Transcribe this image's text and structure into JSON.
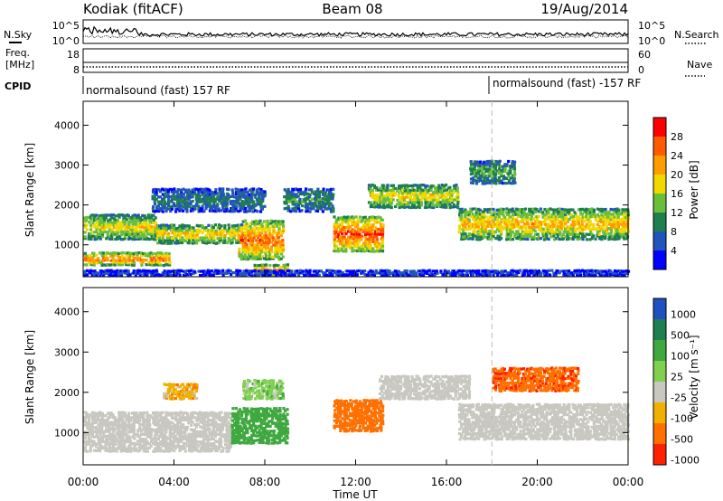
{
  "header": {
    "station": "Kodiak (fitACF)",
    "beam": "Beam 08",
    "date": "19/Aug/2014"
  },
  "summary_panels": {
    "nsky_label": "N.Sky",
    "nsearch_label": "N.Search",
    "freq_label_1": "Freq.",
    "freq_label_2": "[MHz]",
    "nave_label": "Nave",
    "cpid_label": "CPID",
    "noise_ticks": [
      "10^5",
      "10^0"
    ],
    "freq_ticks": [
      "18",
      "8"
    ],
    "nave_ticks": [
      "60",
      "0"
    ],
    "cpid_segments": [
      {
        "label": "normalsound (fast) 157 RF",
        "start_hour": 0.0
      },
      {
        "label": "normalsound (fast) -157 RF",
        "start_hour": 18.0
      }
    ]
  },
  "chart_data": [
    {
      "type": "heatmap",
      "name": "power",
      "ylabel": "Slant Range [km]",
      "ylim": [
        200,
        4600
      ],
      "yticks": [
        1000,
        2000,
        3000,
        4000
      ],
      "colorbar_label": "Power [dB]",
      "colorbar_ticks": [
        4,
        8,
        12,
        16,
        20,
        24,
        28
      ],
      "colorbar_colors": [
        "#0000ff",
        "#2255bb",
        "#1f7f4f",
        "#6abf3a",
        "#f0d800",
        "#ff9d00",
        "#ff5a00",
        "#ff0000"
      ],
      "bands": [
        {
          "t": [
            0.0,
            3.8
          ],
          "r": [
            450,
            800
          ],
          "dB": 28
        },
        {
          "t": [
            0.0,
            3.2
          ],
          "r": [
            1100,
            1750
          ],
          "dB": 20
        },
        {
          "t": [
            3.2,
            7.0
          ],
          "r": [
            1000,
            1500
          ],
          "dB": 22
        },
        {
          "t": [
            6.8,
            8.8
          ],
          "r": [
            600,
            1600
          ],
          "dB": 27
        },
        {
          "t": [
            7.5,
            9.0
          ],
          "r": [
            200,
            500
          ],
          "dB": 26
        },
        {
          "t": [
            8.8,
            11.0
          ],
          "r": [
            1800,
            2400
          ],
          "dB": 12
        },
        {
          "t": [
            3.0,
            8.0
          ],
          "r": [
            1800,
            2400
          ],
          "dB": 10
        },
        {
          "t": [
            11.0,
            13.2
          ],
          "r": [
            800,
            1700
          ],
          "dB": 29
        },
        {
          "t": [
            12.5,
            16.5
          ],
          "r": [
            1900,
            2500
          ],
          "dB": 20
        },
        {
          "t": [
            16.5,
            24.0
          ],
          "r": [
            1100,
            1900
          ],
          "dB": 22
        },
        {
          "t": [
            17.0,
            19.0
          ],
          "r": [
            2500,
            3100
          ],
          "dB": 14
        },
        {
          "t": [
            0.0,
            24.0
          ],
          "r": [
            200,
            350
          ],
          "dB": 6
        }
      ]
    },
    {
      "type": "heatmap",
      "name": "velocity",
      "ylabel": "Slant Range [km]",
      "ylim": [
        200,
        4600
      ],
      "yticks": [
        1000,
        2000,
        3000,
        4000
      ],
      "colorbar_label": "Velocity [m s⁻¹]",
      "colorbar_ticks": [
        1000,
        500,
        100,
        25,
        -25,
        -100,
        -500,
        -1000
      ],
      "colorbar_colors": [
        "#2050c0",
        "#1f7f4f",
        "#3fa83f",
        "#7fd04f",
        "#c8c8c0",
        "#f0b000",
        "#ff7000",
        "#ff2000"
      ],
      "bands": [
        {
          "t": [
            0.0,
            6.5
          ],
          "r": [
            500,
            1500
          ],
          "v": 0
        },
        {
          "t": [
            6.5,
            9.0
          ],
          "r": [
            700,
            1600
          ],
          "v": 300
        },
        {
          "t": [
            11.0,
            13.2
          ],
          "r": [
            1000,
            1800
          ],
          "v": -300
        },
        {
          "t": [
            13.0,
            17.0
          ],
          "r": [
            1800,
            2400
          ],
          "v": 0
        },
        {
          "t": [
            16.5,
            24.0
          ],
          "r": [
            800,
            1700
          ],
          "v": 0
        },
        {
          "t": [
            18.0,
            21.8
          ],
          "r": [
            2000,
            2600
          ],
          "v": -400
        },
        {
          "t": [
            3.5,
            5.0
          ],
          "r": [
            1800,
            2200
          ],
          "v": -60
        },
        {
          "t": [
            7.0,
            8.8
          ],
          "r": [
            1800,
            2300
          ],
          "v": 60
        }
      ]
    }
  ],
  "x_axis": {
    "label": "Time UT",
    "range_hours": [
      0,
      24
    ],
    "ticks": [
      "00:00",
      "04:00",
      "08:00",
      "12:00",
      "16:00",
      "20:00",
      "00:00"
    ]
  }
}
